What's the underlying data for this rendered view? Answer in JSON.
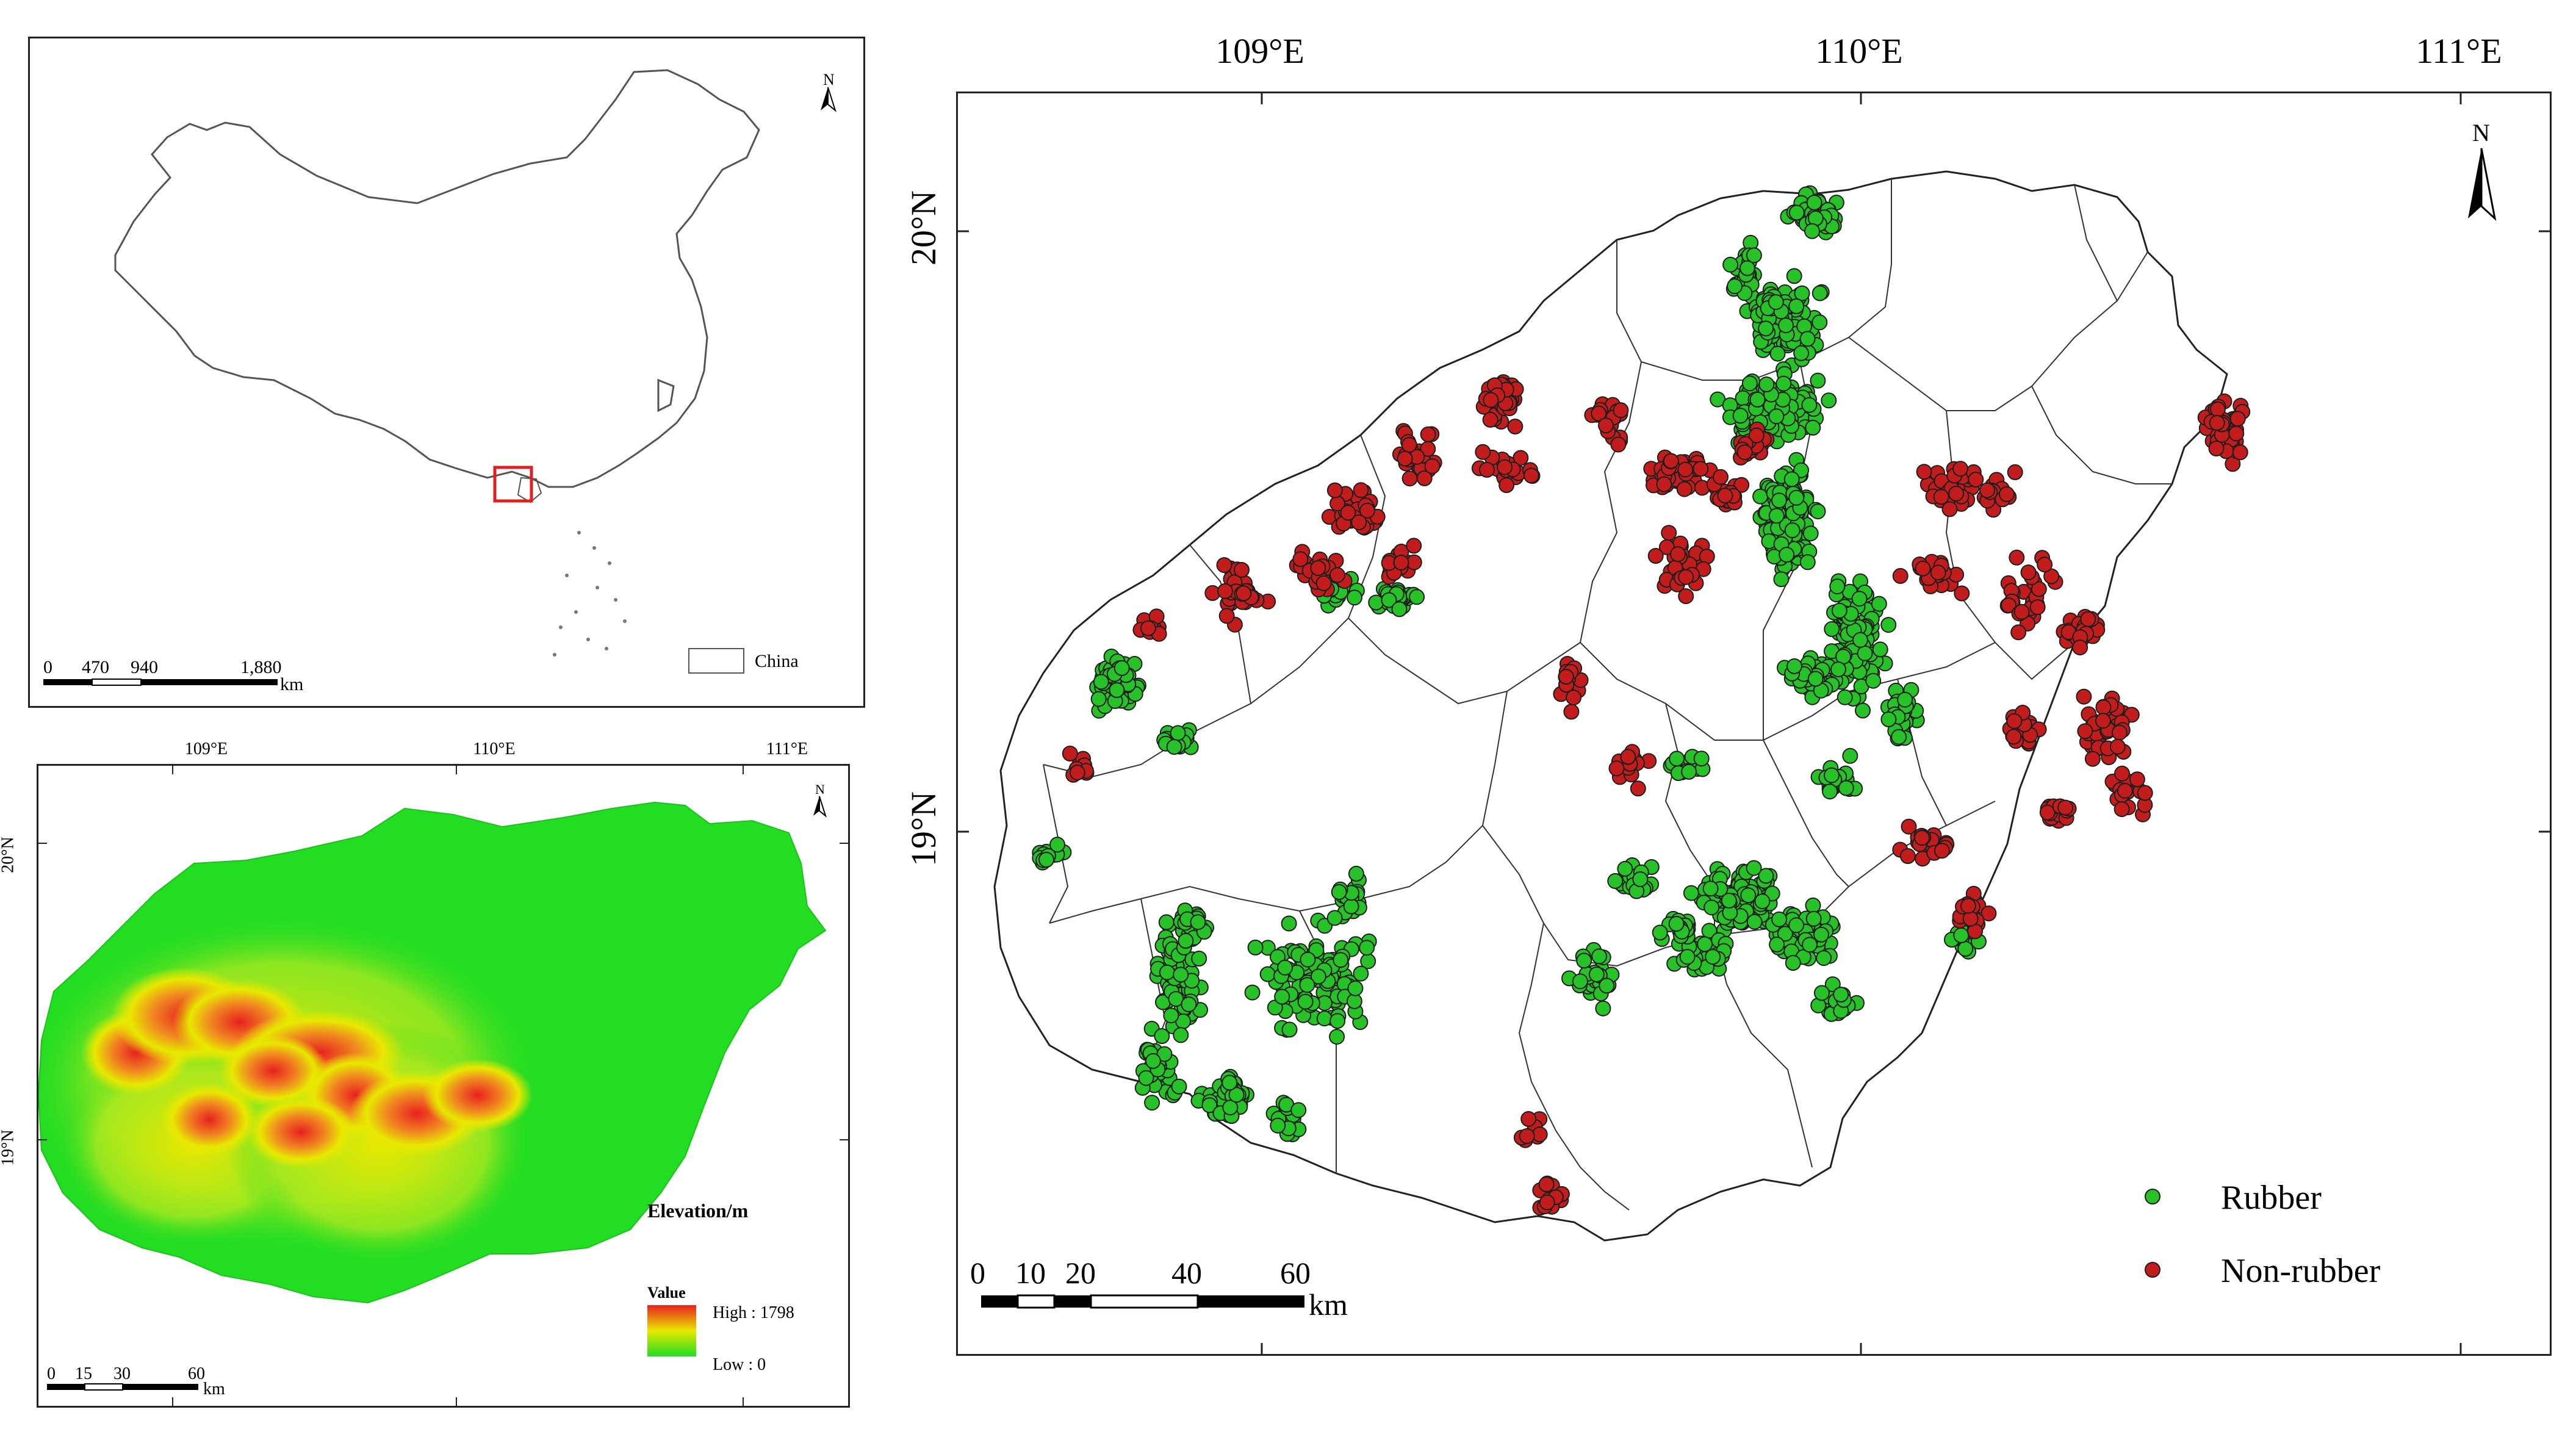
{
  "china_map": {
    "north_label": "N",
    "legend_label": "China",
    "scale_labels": [
      "0",
      "470",
      "940",
      "1,880"
    ],
    "scale_unit": "km"
  },
  "dem_map": {
    "lon_labels": [
      "109°E",
      "110°E",
      "111°E"
    ],
    "lat_labels": [
      "20°N",
      "19°N"
    ],
    "north_label": "N",
    "legend_title": "Elevation/m",
    "legend_subtitle": "Value",
    "legend_high": "High : 1798",
    "legend_low": "Low : 0",
    "scale_labels": [
      "0",
      "15",
      "30",
      "60"
    ],
    "scale_unit": "km",
    "colors": {
      "low": "#22dd22",
      "mid": "#e8e800",
      "high": "#e82020"
    }
  },
  "main_map": {
    "lon_labels": [
      "109°E",
      "110°E",
      "111°E"
    ],
    "lat_labels": [
      "20°N",
      "19°N"
    ],
    "north_label": "N",
    "legend": [
      {
        "label": "Rubber",
        "color": "#27c227"
      },
      {
        "label": "Non-rubber",
        "color": "#c21c1c"
      }
    ],
    "scale_labels": [
      "0",
      "10",
      "20",
      "40",
      "60"
    ],
    "scale_unit": "km"
  }
}
